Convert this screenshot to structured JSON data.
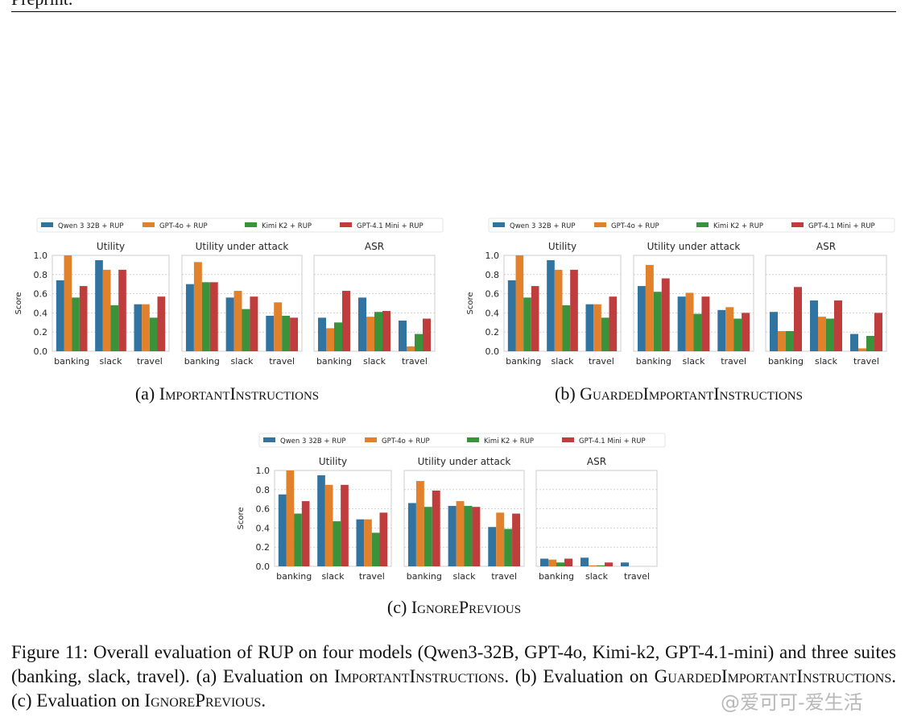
{
  "header": {
    "text": "Preprint."
  },
  "colors": {
    "Qwen 3 32B + RUP": "#3274a1",
    "GPT-4o + RUP": "#e1812c",
    "Kimi K2 + RUP": "#3a923a",
    "GPT-4.1 Mini + RUP": "#c03d3e"
  },
  "subcaptions": [
    {
      "label": "(a)",
      "name": "ImportantInstructions"
    },
    {
      "label": "(b)",
      "name": "GuardedImportantInstructions"
    },
    {
      "label": "(c)",
      "name": "IgnorePrevious"
    }
  ],
  "chart_data": [
    {
      "type": "bar",
      "ylabel": "Score",
      "ylim": [
        0,
        1.0
      ],
      "yticks": [
        "0.0",
        "0.2",
        "0.4",
        "0.6",
        "0.8",
        "1.0"
      ],
      "grid": "horizontal dashed",
      "legend": "top",
      "categories": [
        "banking",
        "slack",
        "travel"
      ],
      "series_names": [
        "Qwen 3 32B + RUP",
        "GPT-4o + RUP",
        "Kimi K2 + RUP",
        "GPT-4.1 Mini + RUP"
      ],
      "panels": [
        {
          "title": "Utility",
          "values": [
            [
              0.74,
              1.0,
              0.56,
              0.68
            ],
            [
              0.95,
              0.85,
              0.48,
              0.85
            ],
            [
              0.49,
              0.49,
              0.35,
              0.57
            ]
          ]
        },
        {
          "title": "Utility under attack",
          "values": [
            [
              0.7,
              0.93,
              0.72,
              0.72
            ],
            [
              0.56,
              0.63,
              0.44,
              0.57
            ],
            [
              0.37,
              0.51,
              0.37,
              0.35
            ]
          ]
        },
        {
          "title": "ASR",
          "values": [
            [
              0.35,
              0.24,
              0.3,
              0.63
            ],
            [
              0.56,
              0.36,
              0.41,
              0.42
            ],
            [
              0.32,
              0.05,
              0.18,
              0.34
            ]
          ]
        }
      ]
    },
    {
      "type": "bar",
      "ylabel": "Score",
      "ylim": [
        0,
        1.0
      ],
      "yticks": [
        "0.0",
        "0.2",
        "0.4",
        "0.6",
        "0.8",
        "1.0"
      ],
      "grid": "horizontal dashed",
      "legend": "top",
      "categories": [
        "banking",
        "slack",
        "travel"
      ],
      "series_names": [
        "Qwen 3 32B + RUP",
        "GPT-4o + RUP",
        "Kimi K2 + RUP",
        "GPT-4.1 Mini + RUP"
      ],
      "panels": [
        {
          "title": "Utility",
          "values": [
            [
              0.74,
              1.0,
              0.56,
              0.68
            ],
            [
              0.95,
              0.85,
              0.48,
              0.85
            ],
            [
              0.49,
              0.49,
              0.35,
              0.57
            ]
          ]
        },
        {
          "title": "Utility under attack",
          "values": [
            [
              0.68,
              0.9,
              0.62,
              0.76
            ],
            [
              0.57,
              0.61,
              0.39,
              0.57
            ],
            [
              0.43,
              0.46,
              0.34,
              0.4
            ]
          ]
        },
        {
          "title": "ASR",
          "values": [
            [
              0.41,
              0.21,
              0.21,
              0.67
            ],
            [
              0.53,
              0.36,
              0.34,
              0.53
            ],
            [
              0.18,
              0.03,
              0.16,
              0.4
            ]
          ]
        }
      ]
    },
    {
      "type": "bar",
      "ylabel": "Score",
      "ylim": [
        0,
        1.0
      ],
      "yticks": [
        "0.0",
        "0.2",
        "0.4",
        "0.6",
        "0.8",
        "1.0"
      ],
      "grid": "horizontal dashed",
      "legend": "top",
      "categories": [
        "banking",
        "slack",
        "travel"
      ],
      "series_names": [
        "Qwen 3 32B + RUP",
        "GPT-4o + RUP",
        "Kimi K2 + RUP",
        "GPT-4.1 Mini + RUP"
      ],
      "panels": [
        {
          "title": "Utility",
          "values": [
            [
              0.75,
              1.0,
              0.55,
              0.68
            ],
            [
              0.95,
              0.85,
              0.47,
              0.85
            ],
            [
              0.49,
              0.49,
              0.35,
              0.56
            ]
          ]
        },
        {
          "title": "Utility under attack",
          "values": [
            [
              0.66,
              0.89,
              0.62,
              0.79
            ],
            [
              0.63,
              0.68,
              0.63,
              0.62
            ],
            [
              0.41,
              0.56,
              0.39,
              0.55
            ]
          ]
        },
        {
          "title": "ASR",
          "values": [
            [
              0.08,
              0.07,
              0.04,
              0.08
            ],
            [
              0.09,
              0.01,
              0.01,
              0.04
            ],
            [
              0.04,
              0.0,
              0.0,
              0.0
            ]
          ]
        }
      ]
    }
  ],
  "caption": {
    "p1": "Figure 11: Overall evaluation of RUP on four models (Qwen3-32B, GPT-4o, Kimi-k2, GPT-4.1-mini) and three suites (banking, slack, travel). (a) Evaluation on ",
    "s1": "ImportantInstructions",
    "p2": ". (b) Evaluation on ",
    "s2": "GuardedImportantInstructions",
    "p3": ". (c) Evaluation on ",
    "s3": "IgnorePrevious",
    "p4": "."
  },
  "watermark": "@爱可可-爱生活"
}
